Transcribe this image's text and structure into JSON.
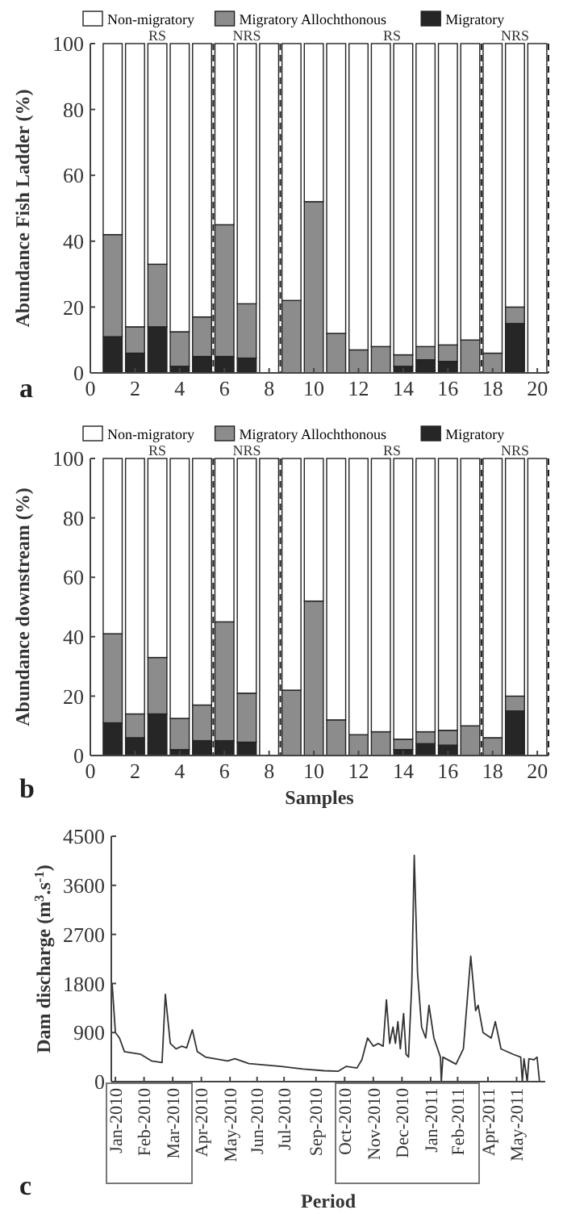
{
  "chart_data": [
    {
      "type": "bar",
      "stacked": true,
      "ylabel": "Abundance Fish Ladder (%)",
      "x": [
        1,
        2,
        3,
        4,
        5,
        6,
        7,
        8,
        9,
        10,
        11,
        12,
        13,
        14,
        15,
        16,
        17,
        18,
        19,
        20
      ],
      "xlim": [
        0,
        20.5
      ],
      "xticks": [
        0,
        2,
        4,
        6,
        8,
        10,
        12,
        14,
        16,
        18,
        20
      ],
      "ylim": [
        0,
        100
      ],
      "yticks": [
        0,
        20,
        40,
        60,
        80,
        100
      ],
      "legend": "top",
      "series": [
        {
          "name": "Migratory",
          "color": "#262626",
          "values": [
            11,
            6,
            14,
            2,
            5,
            5,
            4.5,
            0,
            0,
            0,
            0,
            0,
            0,
            2,
            4,
            3.5,
            0,
            0,
            15,
            0
          ]
        },
        {
          "name": "Migratory Allochthonous",
          "color": "#8c8c8c",
          "values": [
            31,
            8,
            19,
            10.5,
            12,
            40,
            16.5,
            0,
            22,
            52,
            12,
            7,
            8,
            3.5,
            4,
            5,
            10,
            6,
            5,
            0
          ]
        },
        {
          "name": "Non-migratory",
          "color": "#ffffff",
          "values": [
            58,
            86,
            67,
            87.5,
            83,
            55,
            79,
            100,
            78,
            48,
            88,
            93,
            92,
            94.5,
            92,
            91.5,
            90,
            94,
            80,
            100
          ]
        }
      ],
      "ref_lines": [
        {
          "axis": "x",
          "value": 5.5,
          "line_style": "dashed"
        },
        {
          "axis": "x",
          "value": 8.5,
          "line_style": "dashed"
        },
        {
          "axis": "x",
          "value": 17.5,
          "line_style": "dashed"
        },
        {
          "axis": "x",
          "value": 20.5,
          "line_style": "dashed"
        }
      ],
      "annotations": [
        "a",
        {
          "text": "RS",
          "x": 3,
          "y": 100
        },
        {
          "text": "NRS",
          "x": 7,
          "y": 100
        },
        {
          "text": "RS",
          "x": 13.5,
          "y": 100
        },
        {
          "text": "NRS",
          "x": 19,
          "y": 100
        }
      ]
    },
    {
      "type": "bar",
      "stacked": true,
      "ylabel": "Abundance downstream (%)",
      "xlabel": "Samples",
      "x": [
        1,
        2,
        3,
        4,
        5,
        6,
        7,
        8,
        9,
        10,
        11,
        12,
        13,
        14,
        15,
        16,
        17,
        18,
        19,
        20
      ],
      "xlim": [
        0,
        20.5
      ],
      "xticks": [
        0,
        2,
        4,
        6,
        8,
        10,
        12,
        14,
        16,
        18,
        20
      ],
      "ylim": [
        0,
        100
      ],
      "yticks": [
        0,
        20,
        40,
        60,
        80,
        100
      ],
      "legend": "top",
      "series": [
        {
          "name": "Migratory",
          "color": "#262626",
          "values": [
            11,
            6,
            14,
            2,
            5,
            5,
            4.5,
            0,
            0,
            0,
            0,
            0,
            0,
            2,
            4,
            3.5,
            0,
            0,
            15,
            0
          ]
        },
        {
          "name": "Migratory Allochthonous",
          "color": "#8c8c8c",
          "values": [
            30,
            8,
            19,
            10.5,
            12,
            40,
            16.5,
            0,
            22,
            52,
            12,
            7,
            8,
            3.5,
            4,
            5,
            10,
            6,
            5,
            0
          ]
        },
        {
          "name": "Non-migratory",
          "color": "#ffffff",
          "values": [
            59,
            86,
            67,
            87.5,
            83,
            55,
            79,
            100,
            78,
            48,
            88,
            93,
            92,
            94.5,
            92,
            91.5,
            90,
            94,
            80,
            100
          ]
        }
      ],
      "ref_lines": [
        {
          "axis": "x",
          "value": 5.5,
          "line_style": "dashed"
        },
        {
          "axis": "x",
          "value": 8.5,
          "line_style": "dashed"
        },
        {
          "axis": "x",
          "value": 17.5,
          "line_style": "dashed"
        },
        {
          "axis": "x",
          "value": 20.5,
          "line_style": "dashed"
        }
      ],
      "annotations": [
        "b",
        {
          "text": "RS",
          "x": 3,
          "y": 100
        },
        {
          "text": "NRS",
          "x": 7,
          "y": 100
        },
        {
          "text": "RS",
          "x": 13.5,
          "y": 100
        },
        {
          "text": "NRS",
          "x": 19,
          "y": 100
        }
      ]
    },
    {
      "type": "line",
      "ylabel": "Dam discharge (m$^{3}$.s$^{-1}$)",
      "xlabel": "Period",
      "xlim": [
        "2010-01-01",
        "2011-06-15"
      ],
      "ylim": [
        0,
        4500
      ],
      "yticks": [
        0,
        900,
        1800,
        2700,
        3600,
        4500
      ],
      "xticks": [
        {
          "value": "2010-01-06",
          "label": "Jan-2010"
        },
        {
          "value": "2010-02-10",
          "label": "Feb-2010"
        },
        {
          "value": "2010-03-17",
          "label": "Mar-2010"
        },
        {
          "value": "2010-04-21",
          "label": "Apr-2010"
        },
        {
          "value": "2010-05-26",
          "label": "May-2010"
        },
        {
          "value": "2010-06-28",
          "label": "Jun-2010"
        },
        {
          "value": "2010-07-31",
          "label": "Jul-2010"
        },
        {
          "value": "2010-09-08",
          "label": "Sep-2010"
        },
        {
          "value": "2010-10-13",
          "label": "Oct-2010"
        },
        {
          "value": "2010-11-17",
          "label": "Nov-2010"
        },
        {
          "value": "2010-12-22",
          "label": "Dec-2010"
        },
        {
          "value": "2011-01-26",
          "label": "Jan-2011"
        },
        {
          "value": "2011-02-28",
          "label": "Feb-2011"
        },
        {
          "value": "2011-04-06",
          "label": "Apr-2011"
        },
        {
          "value": "2011-05-11",
          "label": "May-2011"
        }
      ],
      "x": [
        "2010-01-02",
        "2010-01-06",
        "2010-01-11",
        "2010-01-17",
        "2010-02-06",
        "2010-02-19",
        "2010-03-04",
        "2010-03-08",
        "2010-03-14",
        "2010-03-21",
        "2010-03-28",
        "2010-04-03",
        "2010-04-10",
        "2010-04-16",
        "2010-04-26",
        "2010-05-23",
        "2010-06-01",
        "2010-06-18",
        "2010-07-27",
        "2010-08-23",
        "2010-09-18",
        "2010-10-05",
        "2010-10-15",
        "2010-10-28",
        "2010-11-03",
        "2010-11-10",
        "2010-11-17",
        "2010-11-23",
        "2010-11-29",
        "2010-12-03",
        "2010-12-07",
        "2010-12-11",
        "2010-12-14",
        "2010-12-17",
        "2010-12-20",
        "2010-12-24",
        "2010-12-27",
        "2010-12-30",
        "2011-01-03",
        "2011-01-06",
        "2011-01-10",
        "2011-01-15",
        "2011-01-20",
        "2011-01-24",
        "2011-01-30",
        "2011-02-07",
        "2011-02-08",
        "2011-02-10",
        "2011-02-26",
        "2011-03-07",
        "2011-03-16",
        "2011-03-22",
        "2011-03-25",
        "2011-03-31",
        "2011-04-10",
        "2011-04-15",
        "2011-04-22",
        "2011-05-07",
        "2011-05-16",
        "2011-05-18",
        "2011-05-20",
        "2011-05-24",
        "2011-05-26",
        "2011-06-01",
        "2011-06-05",
        "2011-06-08"
      ],
      "series": [
        {
          "color": "#333333",
          "values": [
            1800,
            900,
            800,
            550,
            500,
            380,
            350,
            1600,
            700,
            600,
            650,
            620,
            950,
            550,
            450,
            380,
            420,
            330,
            280,
            230,
            200,
            190,
            280,
            250,
            400,
            800,
            650,
            700,
            650,
            1500,
            700,
            1000,
            700,
            1100,
            600,
            1250,
            500,
            450,
            1800,
            4150,
            2000,
            1000,
            800,
            1400,
            800,
            450,
            0,
            450,
            320,
            600,
            2300,
            1300,
            1400,
            900,
            800,
            1100,
            600,
            500,
            450,
            0,
            420,
            0,
            420,
            400,
            450,
            0
          ]
        }
      ],
      "annotations": [
        "c"
      ]
    }
  ]
}
